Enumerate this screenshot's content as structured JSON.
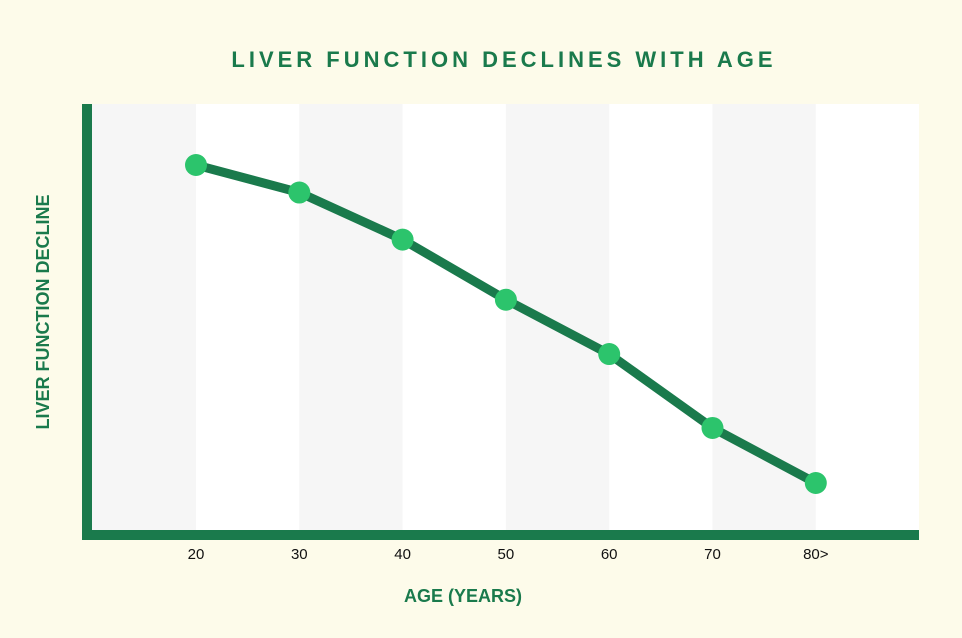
{
  "colors": {
    "page_background": "#fdfbea",
    "band_light": "#f6f6f6",
    "band_white": "#ffffff",
    "axis": "#1a7a4c",
    "title": "#1a7a4c",
    "line": "#1a7a4c",
    "marker": "#2cc46c",
    "tick_text": "#111111"
  },
  "chart_data": {
    "type": "line",
    "title": "LIVER FUNCTION DECLINES WITH AGE",
    "xlabel": "AGE (YEARS)",
    "ylabel": "LIVER FUNCTION DECLINE",
    "categories": [
      "20",
      "30",
      "40",
      "50",
      "60",
      "70",
      "80>"
    ],
    "series": [
      {
        "values": [
          100,
          92.4,
          79.4,
          62.8,
          47.8,
          27.4,
          12.2
        ]
      }
    ],
    "ylim": [
      0,
      110
    ],
    "y_ticks_shown": false,
    "grid": "alternating vertical bands",
    "legend": "none"
  }
}
